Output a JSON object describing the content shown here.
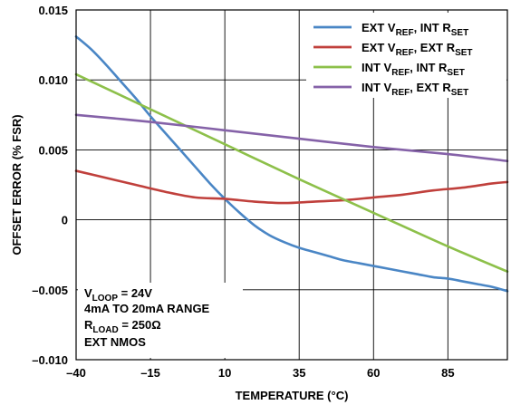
{
  "chart_data": {
    "type": "line",
    "xlabel": "TEMPERATURE (°C)",
    "ylabel": "OFFSET ERROR (% FSR)",
    "xlim": [
      -40,
      105
    ],
    "ylim": [
      -0.01,
      0.015
    ],
    "x_ticks": [
      "–40",
      "–15",
      "10",
      "35",
      "60",
      "85"
    ],
    "x_tick_values": [
      -40,
      -15,
      10,
      35,
      60,
      85
    ],
    "y_ticks": [
      "0.015",
      "0.010",
      "0.005",
      "0",
      "–0.005",
      "–0.010"
    ],
    "y_tick_values": [
      0.015,
      0.01,
      0.005,
      0,
      -0.005,
      -0.01
    ],
    "grid": true,
    "legend_position": "top-right",
    "series": [
      {
        "name": "EXT V_REF, INT R_SET",
        "legend": {
          "p1": "EXT V",
          "s1": "REF",
          "p2": ", INT R",
          "s2": "SET"
        },
        "color": "#4a86c5",
        "x": [
          -40,
          -35,
          -30,
          -25,
          -20,
          -15,
          -10,
          -5,
          0,
          5,
          10,
          15,
          20,
          25,
          30,
          35,
          40,
          45,
          50,
          55,
          60,
          65,
          70,
          75,
          80,
          85,
          90,
          95,
          100,
          105
        ],
        "y": [
          0.0131,
          0.0122,
          0.0111,
          0.0099,
          0.0087,
          0.0074,
          0.0062,
          0.005,
          0.0038,
          0.0026,
          0.0015,
          0.0005,
          -0.0004,
          -0.0011,
          -0.0016,
          -0.002,
          -0.0023,
          -0.0026,
          -0.0029,
          -0.0031,
          -0.0033,
          -0.0035,
          -0.0037,
          -0.0039,
          -0.0041,
          -0.0042,
          -0.0044,
          -0.0046,
          -0.0048,
          -0.0051
        ]
      },
      {
        "name": "EXT V_REF, EXT R_SET",
        "legend": {
          "p1": "EXT V",
          "s1": "REF",
          "p2": ", EXT R",
          "s2": "SET"
        },
        "color": "#c0403c",
        "x": [
          -40,
          -30,
          -20,
          -10,
          0,
          10,
          20,
          30,
          40,
          50,
          60,
          70,
          80,
          90,
          100,
          105
        ],
        "y": [
          0.0035,
          0.003,
          0.0025,
          0.002,
          0.0016,
          0.0015,
          0.0013,
          0.0012,
          0.0013,
          0.0014,
          0.0016,
          0.0018,
          0.0021,
          0.0023,
          0.0026,
          0.0027
        ]
      },
      {
        "name": "INT V_REF, INT R_SET",
        "legend": {
          "p1": "INT V",
          "s1": "REF",
          "p2": ", INT R",
          "s2": "SET"
        },
        "color": "#8dc04a",
        "x": [
          -40,
          -15,
          10,
          35,
          60,
          85,
          105
        ],
        "y": [
          0.0104,
          0.0079,
          0.0054,
          0.0029,
          0.0005,
          -0.0019,
          -0.0037
        ]
      },
      {
        "name": "INT V_REF, EXT R_SET",
        "legend": {
          "p1": "INT V",
          "s1": "REF",
          "p2": ", EXT R",
          "s2": "SET"
        },
        "color": "#8562a8",
        "x": [
          -40,
          -15,
          10,
          35,
          60,
          85,
          105
        ],
        "y": [
          0.0075,
          0.007,
          0.0064,
          0.0058,
          0.0052,
          0.0047,
          0.0042
        ]
      }
    ],
    "annotation": {
      "line1_p1": "V",
      "line1_s1": "LOOP",
      "line1_p2": " = 24V",
      "line2": "4mA TO 20mA RANGE",
      "line3_p1": "R",
      "line3_s1": "LOAD",
      "line3_p2": " = 250Ω",
      "line4": "EXT NMOS"
    }
  }
}
